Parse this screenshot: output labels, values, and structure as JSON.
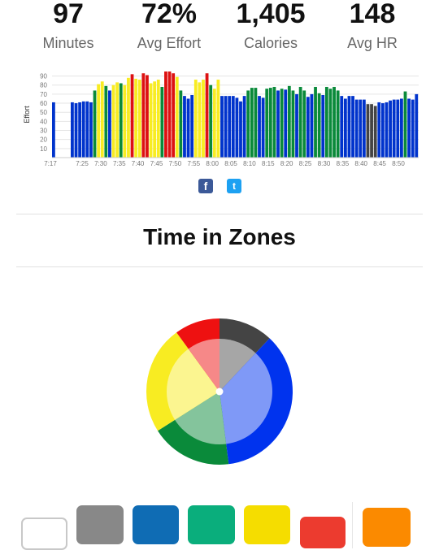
{
  "summary": {
    "minutes": {
      "value": "97",
      "label": "Minutes"
    },
    "effort": {
      "value": "72%",
      "label": "Avg Effort"
    },
    "calories": {
      "value": "1,405",
      "label": "Calories"
    },
    "hr": {
      "value": "148",
      "label": "Avg HR"
    }
  },
  "colors": {
    "gray": "#444444",
    "blue": "#0033cc",
    "green": "#0a8a3a",
    "yellow": "#f8ec22",
    "red": "#dd1111"
  },
  "chart_data": {
    "type": "bar",
    "ylabel": "Effort",
    "xlabel": "",
    "ylim": [
      0,
      95
    ],
    "yticks": [
      10,
      20,
      30,
      40,
      50,
      60,
      70,
      80,
      90
    ],
    "x_tick_labels": [
      "7:17",
      "7:25",
      "7:30",
      "7:35",
      "7:40",
      "7:45",
      "7:50",
      "7:55",
      "8:00",
      "8:05",
      "8:10",
      "8:15",
      "8:20",
      "8:25",
      "8:30",
      "8:35",
      "8:40",
      "8:45",
      "8:50"
    ],
    "values": [
      61,
      0,
      0,
      0,
      0,
      61,
      60,
      61,
      62,
      62,
      61,
      74,
      81,
      84,
      79,
      74,
      80,
      83,
      82,
      80,
      88,
      92,
      87,
      86,
      93,
      91,
      82,
      84,
      86,
      78,
      95,
      95,
      93,
      89,
      74,
      68,
      65,
      69,
      86,
      83,
      86,
      93,
      80,
      76,
      86,
      68,
      68,
      68,
      68,
      66,
      62,
      68,
      74,
      77,
      77,
      68,
      66,
      76,
      77,
      78,
      74,
      76,
      75,
      79,
      74,
      70,
      78,
      74,
      67,
      70,
      78,
      71,
      69,
      78,
      76,
      78,
      74,
      68,
      65,
      68,
      68,
      64,
      64,
      64,
      59,
      59,
      57,
      61,
      60,
      61,
      63,
      64,
      64,
      65,
      73,
      65,
      64,
      70
    ],
    "zones": [
      "b",
      "b",
      "b",
      "b",
      "b",
      "b",
      "b",
      "b",
      "b",
      "b",
      "b",
      "g",
      "y",
      "y",
      "g",
      "b",
      "y",
      "y",
      "g",
      "y",
      "y",
      "r",
      "y",
      "y",
      "r",
      "r",
      "y",
      "y",
      "y",
      "g",
      "r",
      "r",
      "r",
      "y",
      "g",
      "b",
      "b",
      "b",
      "y",
      "y",
      "y",
      "r",
      "g",
      "y",
      "y",
      "b",
      "b",
      "b",
      "b",
      "b",
      "b",
      "b",
      "g",
      "g",
      "g",
      "b",
      "b",
      "g",
      "g",
      "g",
      "b",
      "g",
      "b",
      "g",
      "g",
      "b",
      "g",
      "g",
      "b",
      "b",
      "g",
      "g",
      "b",
      "g",
      "g",
      "g",
      "g",
      "b",
      "b",
      "b",
      "b",
      "b",
      "b",
      "b",
      "x",
      "x",
      "x",
      "b",
      "b",
      "b",
      "b",
      "b",
      "b",
      "b",
      "g",
      "b",
      "b",
      "b"
    ]
  },
  "share": {
    "facebook": "f",
    "twitter": "t"
  },
  "zones_section": {
    "title": "Time in Zones",
    "chart_data": {
      "type": "pie",
      "slices": [
        {
          "zone": "gray",
          "value": 12,
          "color": "#444444",
          "inner": "#a6a6a6"
        },
        {
          "zone": "blue",
          "value": 36,
          "color": "#0033ee",
          "inner": "#7f99f7"
        },
        {
          "zone": "green",
          "value": 18,
          "color": "#0a8a3a",
          "inner": "#84c49c"
        },
        {
          "zone": "yellow",
          "value": 24,
          "color": "#f8ec22",
          "inner": "#fbf590"
        },
        {
          "zone": "red",
          "value": 10,
          "color": "#ee1111",
          "inner": "#f68888"
        }
      ]
    }
  },
  "filter_swatches": [
    {
      "name": "all",
      "color": "#ffffff"
    },
    {
      "name": "gray",
      "color": "#888888"
    },
    {
      "name": "blue",
      "color": "#0f6cb4"
    },
    {
      "name": "green",
      "color": "#0aae7c"
    },
    {
      "name": "yellow",
      "color": "#f5dd00"
    },
    {
      "name": "red",
      "color": "#ec3b2f"
    },
    {
      "name": "orange",
      "color": "#fb8a00"
    }
  ]
}
